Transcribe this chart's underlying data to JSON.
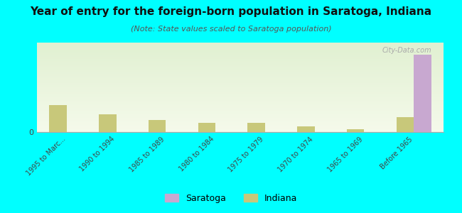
{
  "title": "Year of entry for the foreign-born population in Saratoga, Indiana",
  "subtitle": "(Note: State values scaled to Saratoga population)",
  "categories": [
    "1995 to Marc...",
    "1990 to 1994",
    "1985 to 1989",
    "1980 to 1984",
    "1975 to 1979",
    "1970 to 1974",
    "1965 to 1969",
    "Before 1965"
  ],
  "saratoga_values": [
    0,
    0,
    0,
    0,
    0,
    0,
    0,
    52
  ],
  "indiana_values": [
    18,
    12,
    8,
    6,
    6,
    4,
    2,
    10
  ],
  "saratoga_color": "#c8a8d0",
  "indiana_color": "#c8c87a",
  "background_color": "#00ffff",
  "plot_bg_top": "#e8f0d0",
  "plot_bg_bottom": "#f5f8e8",
  "bar_width": 0.35,
  "ylim": [
    0,
    60
  ],
  "watermark": "City-Data.com"
}
